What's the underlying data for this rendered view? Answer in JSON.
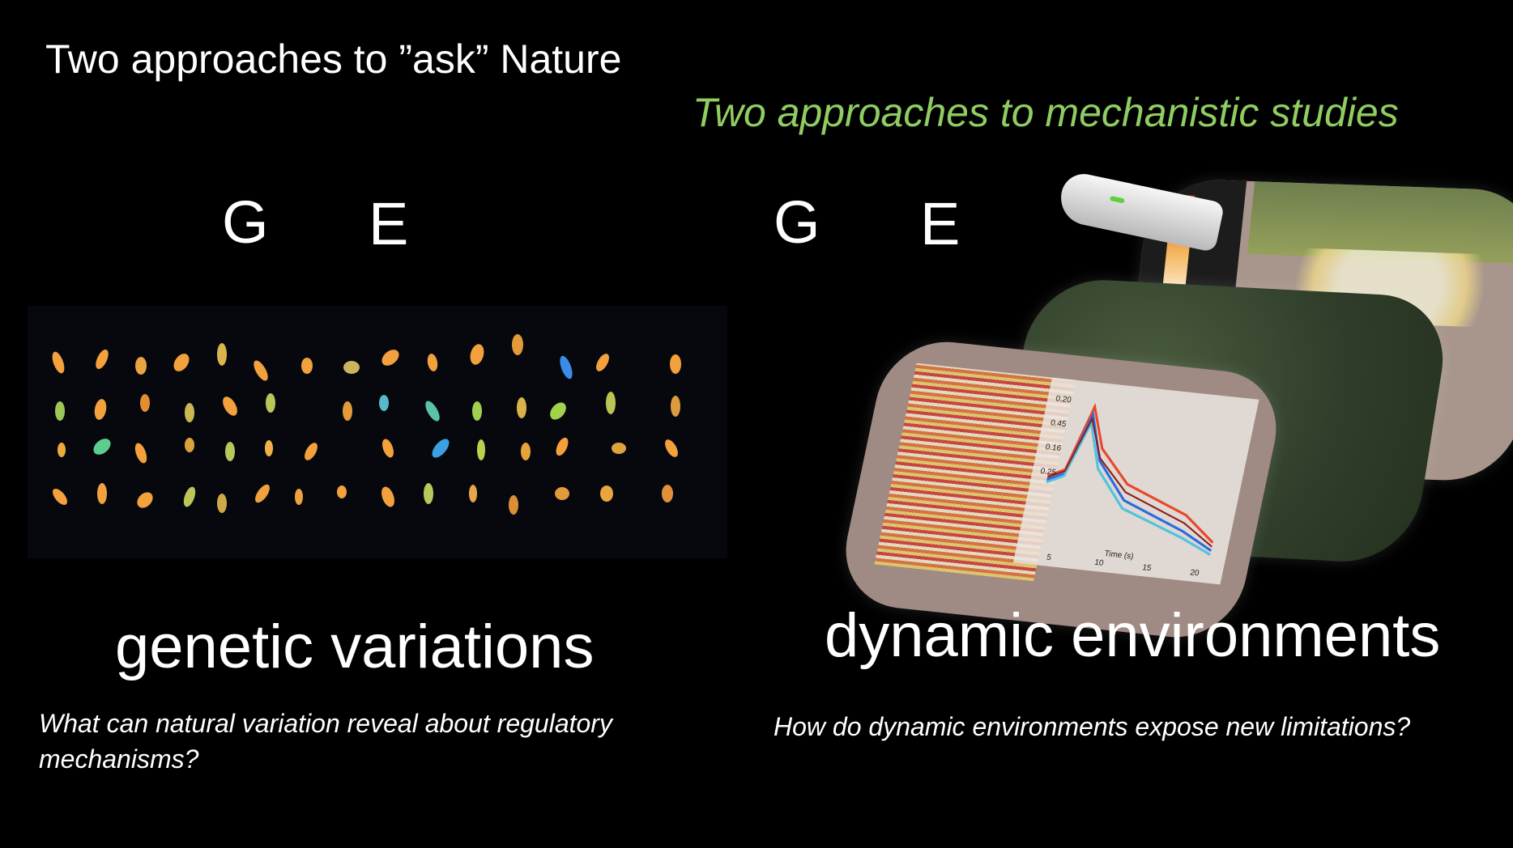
{
  "slide": {
    "title": "Two approaches to ”ask” Nature",
    "subtitle": "Two approaches to mechanistic studies"
  },
  "left": {
    "g_label": "G",
    "e_label": "E",
    "heading": "genetic variations",
    "question": "What can natural variation reveal about regulatory mechanisms?",
    "image": "array of plants imaged from above (fluorescence colormap)"
  },
  "right": {
    "g_label": "G",
    "e_label": "E",
    "heading": "dynamic environments",
    "question": "How do dynamic environments expose new limitations?",
    "images": [
      "handheld fluorometer device",
      "thermal field plot image",
      "aerial forest canopy",
      "field plot with measurement curves"
    ],
    "curve_plot": {
      "xlabel": "Time (s)",
      "x_ticks": [
        "5",
        "10",
        "15",
        "20"
      ],
      "y_ticks": [
        "0.20",
        "0.45",
        "0.16",
        "0.25"
      ]
    }
  },
  "colors": {
    "background": "#000000",
    "text": "#ffffff",
    "subtitle": "#8fcd62"
  }
}
